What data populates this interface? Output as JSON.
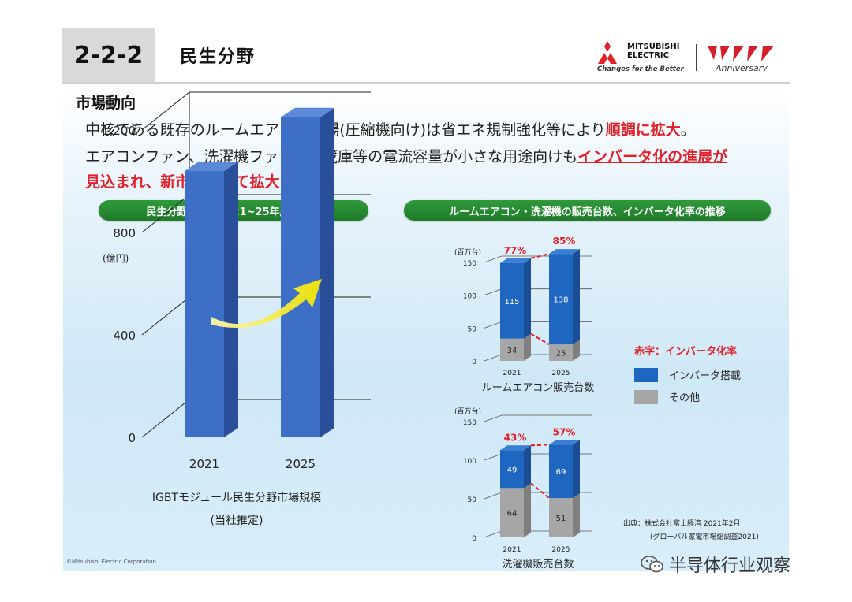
{
  "header": {
    "section_number": "2-2-2",
    "title": "民生分野",
    "brand_line1": "MITSUBISHI",
    "brand_line2": "ELECTRIC",
    "tagline": "Changes for the Better",
    "anniversary": "Anniversary"
  },
  "market": {
    "heading": "市場動向",
    "line1_pre": "中核である既存のルームエアコン市場(圧縮機向け)は省エネ規制強化等により",
    "line1_hl": "順調に拡大",
    "line1_post": "。",
    "line2_pre": "エアコンファン、洗濯機ファン、冷蔵庫等の電流容量が小さな用途向けも",
    "line2_hl": "インバータ化の進展が",
    "line3_hl": "見込まれ、新市場として拡大"
  },
  "left_panel": {
    "pill": "民生分野市場の2021~25年度見通し",
    "caption1": "IGBTモジュール民生分野市場規模",
    "caption2": "(当社推定)"
  },
  "right_panel": {
    "pill": "ルームエアコン・洗濯機の販売台数、インバータ化率の推移",
    "legend_title": "赤字：インバータ化率",
    "legend_inverter": "インバータ搭載",
    "legend_other": "その他",
    "source1": "出典：株式会社富士経済 2021年2月",
    "source2": "(グローバル家電市場総調査2021)"
  },
  "footer": {
    "copyright": "©Mitsubishi Electric Corporation",
    "watermark": "半导体行业观察"
  },
  "colors": {
    "inverter": "#1f66c0",
    "other": "#a6a6a6",
    "accent_red": "#e3202a",
    "pill_green": "#2a8c35",
    "bar_blue": "#3d6fc7"
  },
  "chart_data": [
    {
      "type": "bar",
      "title": "",
      "categories": [
        "2021",
        "2025"
      ],
      "values": [
        1040,
        1250
      ],
      "ylabel": "(億円)",
      "yticks": [
        "0",
        "400",
        "800",
        "1,200"
      ],
      "ylim": [
        0,
        1200
      ],
      "xlabel": "IGBTモジュール民生分野市場規模 (当社推定)"
    },
    {
      "type": "bar",
      "title": "",
      "xlabel": "ルームエアコン販売台数",
      "ylabel": "(百万台)",
      "yticks": [
        "0",
        "50",
        "100",
        "150"
      ],
      "ylim": [
        0,
        150
      ],
      "categories": [
        "2021",
        "2025"
      ],
      "series": [
        {
          "name": "その他",
          "values": [
            34,
            25
          ]
        },
        {
          "name": "インバータ搭載",
          "values": [
            115,
            138
          ]
        }
      ],
      "rates": [
        "77%",
        "85%"
      ]
    },
    {
      "type": "bar",
      "title": "",
      "xlabel": "洗濯機販売台数",
      "ylabel": "(百万台)",
      "yticks": [
        "0",
        "50",
        "100",
        "150"
      ],
      "ylim": [
        0,
        150
      ],
      "categories": [
        "2021",
        "2025"
      ],
      "series": [
        {
          "name": "その他",
          "values": [
            64,
            51
          ]
        },
        {
          "name": "インバータ搭載",
          "values": [
            49,
            69
          ]
        }
      ],
      "rates": [
        "43%",
        "57%"
      ]
    }
  ]
}
